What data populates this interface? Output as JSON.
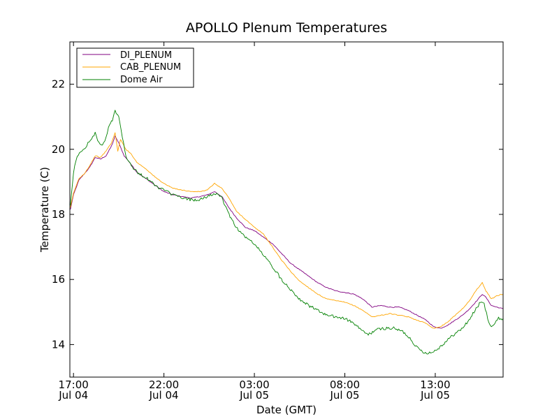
{
  "chart_data": {
    "type": "line",
    "title": "APOLLO Plenum Temperatures",
    "xlabel": "Date (GMT)",
    "ylabel": "Temperature (C)",
    "xlim": [
      16.8,
      40.75
    ],
    "ylim": [
      13,
      23.3
    ],
    "x_unit": "hours since 2012-07-04 00:00 GMT",
    "x_ticks": [
      {
        "value": 17,
        "label_time": "17:00",
        "label_date": "Jul 04"
      },
      {
        "value": 22,
        "label_time": "22:00",
        "label_date": "Jul 04"
      },
      {
        "value": 27,
        "label_time": "03:00",
        "label_date": "Jul 05"
      },
      {
        "value": 32,
        "label_time": "08:00",
        "label_date": "Jul 05"
      },
      {
        "value": 37,
        "label_time": "13:00",
        "label_date": "Jul 05"
      }
    ],
    "y_ticks": [
      14,
      16,
      18,
      20,
      22
    ],
    "grid": false,
    "legend": {
      "position": "top-left",
      "entries": [
        "DI_PLENUM",
        "CAB_PLENUM",
        "Dome Air"
      ]
    },
    "series": [
      {
        "name": "DI_PLENUM",
        "color": "#800080",
        "points": [
          [
            16.83,
            18.15
          ],
          [
            17.0,
            18.6
          ],
          [
            17.3,
            19.05
          ],
          [
            17.6,
            19.25
          ],
          [
            17.9,
            19.45
          ],
          [
            18.2,
            19.75
          ],
          [
            18.5,
            19.7
          ],
          [
            18.8,
            19.8
          ],
          [
            19.1,
            20.1
          ],
          [
            19.3,
            20.4
          ],
          [
            19.5,
            20.2
          ],
          [
            19.8,
            19.8
          ],
          [
            20.1,
            19.6
          ],
          [
            20.5,
            19.3
          ],
          [
            21.0,
            19.1
          ],
          [
            21.5,
            18.9
          ],
          [
            22.0,
            18.7
          ],
          [
            22.5,
            18.6
          ],
          [
            23.0,
            18.55
          ],
          [
            23.5,
            18.5
          ],
          [
            24.0,
            18.55
          ],
          [
            24.4,
            18.6
          ],
          [
            24.8,
            18.7
          ],
          [
            25.2,
            18.55
          ],
          [
            25.6,
            18.2
          ],
          [
            26.0,
            17.9
          ],
          [
            26.5,
            17.6
          ],
          [
            27.0,
            17.5
          ],
          [
            27.5,
            17.3
          ],
          [
            28.0,
            17.1
          ],
          [
            28.5,
            16.8
          ],
          [
            29.0,
            16.5
          ],
          [
            29.5,
            16.3
          ],
          [
            30.0,
            16.1
          ],
          [
            30.5,
            15.9
          ],
          [
            31.0,
            15.75
          ],
          [
            31.5,
            15.65
          ],
          [
            32.0,
            15.6
          ],
          [
            32.5,
            15.55
          ],
          [
            33.0,
            15.4
          ],
          [
            33.5,
            15.15
          ],
          [
            34.0,
            15.2
          ],
          [
            34.5,
            15.15
          ],
          [
            35.0,
            15.15
          ],
          [
            35.5,
            15.05
          ],
          [
            36.0,
            14.9
          ],
          [
            36.5,
            14.75
          ],
          [
            36.9,
            14.55
          ],
          [
            37.3,
            14.5
          ],
          [
            37.7,
            14.6
          ],
          [
            38.1,
            14.75
          ],
          [
            38.5,
            14.9
          ],
          [
            38.9,
            15.1
          ],
          [
            39.3,
            15.35
          ],
          [
            39.6,
            15.55
          ],
          [
            39.8,
            15.45
          ],
          [
            40.1,
            15.2
          ],
          [
            40.4,
            15.15
          ],
          [
            40.75,
            15.1
          ]
        ]
      },
      {
        "name": "CAB_PLENUM",
        "color": "#ffa500",
        "points": [
          [
            16.83,
            18.2
          ],
          [
            17.0,
            18.65
          ],
          [
            17.3,
            19.1
          ],
          [
            17.6,
            19.25
          ],
          [
            17.9,
            19.5
          ],
          [
            18.2,
            19.8
          ],
          [
            18.5,
            19.75
          ],
          [
            18.8,
            19.95
          ],
          [
            19.1,
            20.2
          ],
          [
            19.3,
            20.5
          ],
          [
            19.45,
            19.95
          ],
          [
            19.6,
            20.3
          ],
          [
            19.9,
            20.0
          ],
          [
            20.2,
            19.85
          ],
          [
            20.5,
            19.6
          ],
          [
            21.0,
            19.4
          ],
          [
            21.5,
            19.15
          ],
          [
            22.0,
            18.95
          ],
          [
            22.5,
            18.8
          ],
          [
            23.0,
            18.75
          ],
          [
            23.5,
            18.7
          ],
          [
            24.0,
            18.7
          ],
          [
            24.4,
            18.75
          ],
          [
            24.8,
            18.95
          ],
          [
            25.2,
            18.8
          ],
          [
            25.6,
            18.5
          ],
          [
            26.0,
            18.1
          ],
          [
            26.5,
            17.85
          ],
          [
            27.0,
            17.6
          ],
          [
            27.5,
            17.4
          ],
          [
            28.0,
            17.0
          ],
          [
            28.5,
            16.6
          ],
          [
            29.0,
            16.25
          ],
          [
            29.5,
            15.95
          ],
          [
            30.0,
            15.75
          ],
          [
            30.5,
            15.55
          ],
          [
            31.0,
            15.4
          ],
          [
            31.5,
            15.35
          ],
          [
            32.0,
            15.3
          ],
          [
            32.5,
            15.2
          ],
          [
            33.0,
            15.05
          ],
          [
            33.5,
            14.85
          ],
          [
            34.0,
            14.9
          ],
          [
            34.5,
            14.95
          ],
          [
            35.0,
            14.9
          ],
          [
            35.5,
            14.85
          ],
          [
            36.0,
            14.75
          ],
          [
            36.5,
            14.65
          ],
          [
            36.9,
            14.5
          ],
          [
            37.3,
            14.55
          ],
          [
            37.7,
            14.7
          ],
          [
            38.1,
            14.9
          ],
          [
            38.5,
            15.1
          ],
          [
            38.9,
            15.35
          ],
          [
            39.3,
            15.7
          ],
          [
            39.6,
            15.9
          ],
          [
            39.8,
            15.65
          ],
          [
            40.1,
            15.4
          ],
          [
            40.4,
            15.5
          ],
          [
            40.75,
            15.55
          ]
        ]
      },
      {
        "name": "Dome Air",
        "color": "#008000",
        "points": [
          [
            16.83,
            18.3
          ],
          [
            17.0,
            19.3
          ],
          [
            17.2,
            19.8
          ],
          [
            17.4,
            19.9
          ],
          [
            17.6,
            20.0
          ],
          [
            17.8,
            20.2
          ],
          [
            18.0,
            20.3
          ],
          [
            18.2,
            20.5
          ],
          [
            18.4,
            20.2
          ],
          [
            18.6,
            20.1
          ],
          [
            18.8,
            20.35
          ],
          [
            19.0,
            20.8
          ],
          [
            19.15,
            20.9
          ],
          [
            19.3,
            21.2
          ],
          [
            19.5,
            21.0
          ],
          [
            19.7,
            20.4
          ],
          [
            19.9,
            19.8
          ],
          [
            20.2,
            19.5
          ],
          [
            20.5,
            19.3
          ],
          [
            20.8,
            19.2
          ],
          [
            21.2,
            19.05
          ],
          [
            21.6,
            18.85
          ],
          [
            22.0,
            18.75
          ],
          [
            22.5,
            18.6
          ],
          [
            23.0,
            18.5
          ],
          [
            23.5,
            18.45
          ],
          [
            24.0,
            18.45
          ],
          [
            24.4,
            18.55
          ],
          [
            24.8,
            18.65
          ],
          [
            25.2,
            18.5
          ],
          [
            25.6,
            18.0
          ],
          [
            26.0,
            17.6
          ],
          [
            26.5,
            17.3
          ],
          [
            27.0,
            17.1
          ],
          [
            27.5,
            16.75
          ],
          [
            28.0,
            16.4
          ],
          [
            28.5,
            16.0
          ],
          [
            29.0,
            15.7
          ],
          [
            29.5,
            15.4
          ],
          [
            30.0,
            15.2
          ],
          [
            30.5,
            15.05
          ],
          [
            31.0,
            14.9
          ],
          [
            31.5,
            14.85
          ],
          [
            32.0,
            14.8
          ],
          [
            32.5,
            14.65
          ],
          [
            33.0,
            14.4
          ],
          [
            33.3,
            14.3
          ],
          [
            33.7,
            14.45
          ],
          [
            34.2,
            14.5
          ],
          [
            34.7,
            14.5
          ],
          [
            35.2,
            14.4
          ],
          [
            35.6,
            14.2
          ],
          [
            36.0,
            13.9
          ],
          [
            36.4,
            13.75
          ],
          [
            36.8,
            13.75
          ],
          [
            37.2,
            13.9
          ],
          [
            37.6,
            14.1
          ],
          [
            38.0,
            14.3
          ],
          [
            38.4,
            14.45
          ],
          [
            38.8,
            14.7
          ],
          [
            39.2,
            15.05
          ],
          [
            39.5,
            15.3
          ],
          [
            39.7,
            15.25
          ],
          [
            39.9,
            14.8
          ],
          [
            40.1,
            14.55
          ],
          [
            40.3,
            14.65
          ],
          [
            40.5,
            14.8
          ],
          [
            40.75,
            14.8
          ]
        ]
      }
    ]
  }
}
